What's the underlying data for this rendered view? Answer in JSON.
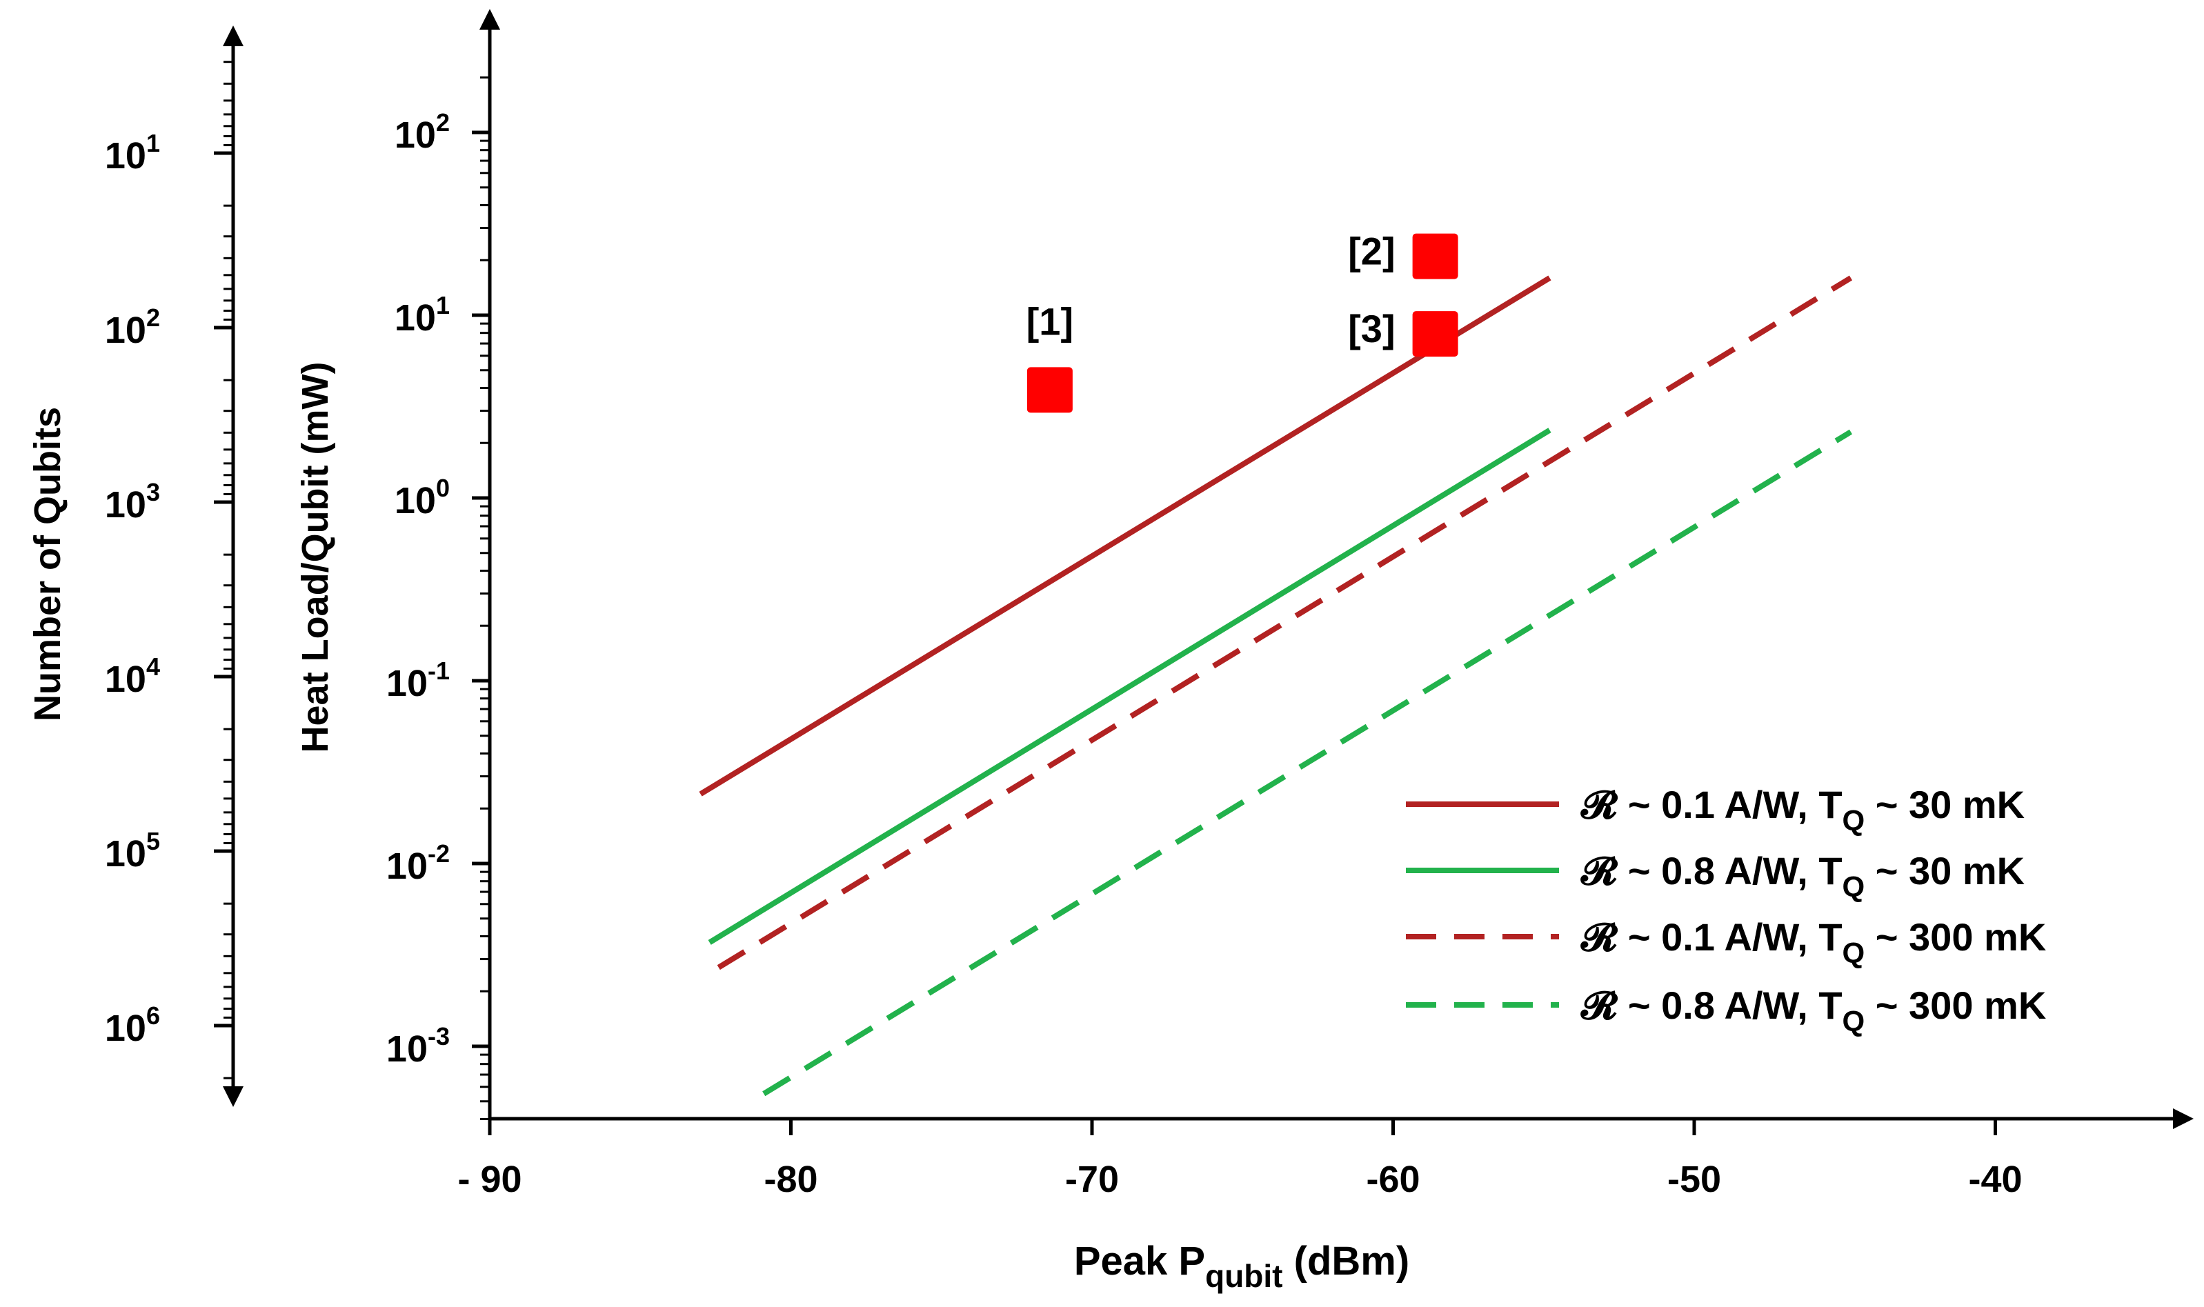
{
  "chart_data": {
    "type": "line",
    "xlabel": {
      "main": "Peak P",
      "sub": "qubit",
      "unit": " (dBm)"
    },
    "ylabel": "Heat Load/Qubit (mW)",
    "y2label": "Number of Qubits",
    "xlim": [
      -90,
      -35
    ],
    "x_ticks": [
      {
        "value": -90,
        "label": "- 90"
      },
      {
        "value": -80,
        "label": "-80"
      },
      {
        "value": -70,
        "label": "-70"
      },
      {
        "value": -60,
        "label": "-60"
      },
      {
        "value": -50,
        "label": "-50"
      },
      {
        "value": -40,
        "label": "-40"
      }
    ],
    "y_scale": "log",
    "ylim": [
      0.0004,
      200
    ],
    "y_ticks": [
      {
        "value": 100,
        "base": "10",
        "exp": "2"
      },
      {
        "value": 10,
        "base": "10",
        "exp": "1"
      },
      {
        "value": 1,
        "base": "10",
        "exp": "0"
      },
      {
        "value": 0.1,
        "base": "10",
        "exp": "-1"
      },
      {
        "value": 0.01,
        "base": "10",
        "exp": "-2"
      },
      {
        "value": 0.001,
        "base": "10",
        "exp": "-3"
      }
    ],
    "y2_scale": "log (inverted)",
    "y2_ticks": [
      {
        "value": 10,
        "base": "10",
        "exp": "1"
      },
      {
        "value": 100,
        "base": "10",
        "exp": "2"
      },
      {
        "value": 1000,
        "base": "10",
        "exp": "3"
      },
      {
        "value": 10000,
        "base": "10",
        "exp": "4"
      },
      {
        "value": 100000,
        "base": "10",
        "exp": "5"
      },
      {
        "value": 1000000,
        "base": "10",
        "exp": "6"
      }
    ],
    "series": [
      {
        "name": "𝓡 ~ 0.1 A/W, T",
        "sub": "Q",
        "tail": " ~ 30 mK",
        "color": "#b22222",
        "dash": "solid",
        "x": [
          -83,
          -54.8
        ],
        "y": [
          0.024,
          16
        ]
      },
      {
        "name": "𝓡 ~ 0.8 A/W, T",
        "sub": "Q",
        "tail": " ~ 30 mK",
        "color": "#22b24c",
        "dash": "solid",
        "x": [
          -82.7,
          -54.8
        ],
        "y": [
          0.0037,
          2.35
        ]
      },
      {
        "name": "𝓡 ~ 0.1 A/W, T",
        "sub": "Q",
        "tail": " ~ 300 mK",
        "color": "#b22222",
        "dash": "dashed",
        "x": [
          -82.4,
          -44.8
        ],
        "y": [
          0.0027,
          16
        ]
      },
      {
        "name": "𝓡 ~ 0.8 A/W, T",
        "sub": "Q",
        "tail": " ~ 300 mK",
        "color": "#22b24c",
        "dash": "dashed",
        "x": [
          -80.9,
          -44.8
        ],
        "y": [
          0.00055,
          2.3
        ]
      }
    ],
    "points": [
      {
        "label": "[1]",
        "x": -71.4,
        "y": 3.9,
        "color": "#ff0000"
      },
      {
        "label": "[2]",
        "x": -58.6,
        "y": 21,
        "color": "#ff0000"
      },
      {
        "label": "[3]",
        "x": -58.6,
        "y": 7.9,
        "color": "#ff0000"
      }
    ],
    "legend_position": "bottom-right",
    "grid": false
  }
}
